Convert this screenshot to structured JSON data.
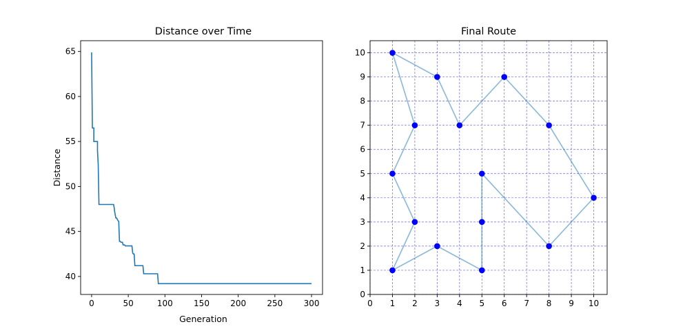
{
  "chart_data": [
    {
      "type": "line",
      "title": "Distance over Time",
      "xlabel": "Generation",
      "ylabel": "Distance",
      "xlim": [
        -15,
        315
      ],
      "ylim": [
        38.0,
        66.2
      ],
      "xticks": [
        0,
        50,
        100,
        150,
        200,
        250,
        300
      ],
      "xtick_labels": [
        "0",
        "50",
        "100",
        "150",
        "200",
        "250",
        "300"
      ],
      "yticks": [
        40,
        45,
        50,
        55,
        60,
        65
      ],
      "ytick_labels": [
        "40",
        "45",
        "50",
        "55",
        "60",
        "65"
      ],
      "grid": false,
      "series": [
        {
          "color": "#1f77b4",
          "x": [
            0,
            1,
            1,
            3,
            3,
            8,
            8,
            9,
            10,
            30,
            31,
            31,
            33,
            34,
            36,
            37,
            38,
            39,
            40,
            42,
            43,
            45,
            46,
            55,
            56,
            57,
            58,
            59,
            60,
            70,
            71,
            72,
            73,
            90,
            91,
            300
          ],
          "y": [
            64.9,
            56.6,
            56.5,
            56.5,
            55.0,
            55.0,
            54.0,
            52.4,
            48.0,
            48.0,
            47.5,
            47.4,
            46.5,
            46.5,
            46.2,
            46.1,
            43.9,
            43.9,
            43.8,
            43.8,
            43.5,
            43.5,
            43.4,
            43.4,
            42.6,
            42.5,
            42.5,
            41.2,
            41.2,
            41.2,
            40.3,
            40.3,
            40.3,
            40.3,
            39.2,
            39.2
          ]
        }
      ]
    },
    {
      "type": "scatter",
      "title": "Final Route",
      "xlabel": "",
      "ylabel": "",
      "xlim": [
        0,
        10.6
      ],
      "ylim": [
        0,
        10.5
      ],
      "xticks": [
        0,
        1,
        2,
        3,
        4,
        5,
        6,
        7,
        8,
        9,
        10
      ],
      "xtick_labels": [
        "0",
        "1",
        "2",
        "3",
        "4",
        "5",
        "6",
        "7",
        "8",
        "9",
        "10"
      ],
      "yticks": [
        0,
        1,
        2,
        3,
        4,
        5,
        6,
        7,
        8,
        9,
        10
      ],
      "ytick_labels": [
        "0",
        "1",
        "2",
        "3",
        "4",
        "5",
        "6",
        "7",
        "8",
        "9",
        "10"
      ],
      "grid": true,
      "grid_color": "#6a6ae0",
      "grid_style": "dashed",
      "route_color": "#1f77b4",
      "route_opacity": 0.5,
      "point_color": "#0000ff",
      "route": [
        [
          1,
          10
        ],
        [
          3,
          9
        ],
        [
          4,
          7
        ],
        [
          6,
          9
        ],
        [
          8,
          7
        ],
        [
          10,
          4
        ],
        [
          8,
          2
        ],
        [
          5,
          5
        ],
        [
          5,
          3
        ],
        [
          5,
          1
        ],
        [
          3,
          2
        ],
        [
          1,
          1
        ],
        [
          2,
          3
        ],
        [
          1,
          5
        ],
        [
          2,
          7
        ],
        [
          1,
          10
        ]
      ],
      "points": [
        [
          1,
          10
        ],
        [
          3,
          9
        ],
        [
          4,
          7
        ],
        [
          6,
          9
        ],
        [
          8,
          7
        ],
        [
          10,
          4
        ],
        [
          8,
          2
        ],
        [
          5,
          5
        ],
        [
          5,
          3
        ],
        [
          5,
          1
        ],
        [
          3,
          2
        ],
        [
          1,
          1
        ],
        [
          2,
          3
        ],
        [
          1,
          5
        ],
        [
          2,
          7
        ]
      ]
    }
  ]
}
